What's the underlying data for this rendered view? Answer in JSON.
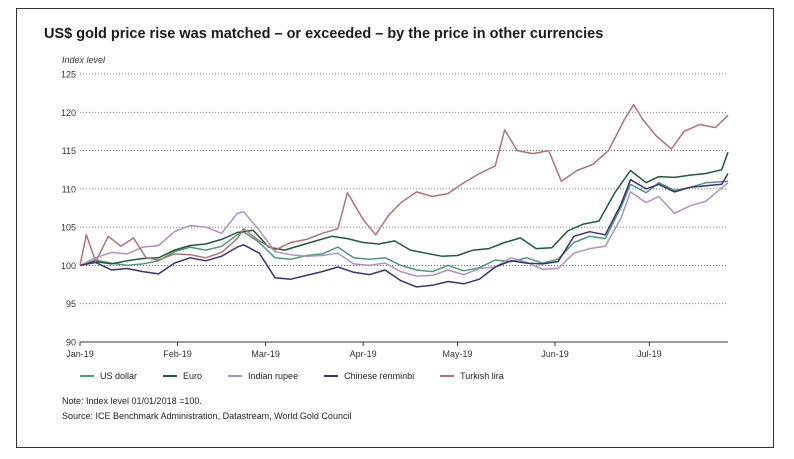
{
  "chart_data": {
    "type": "line",
    "title": "US$ gold price rise was matched – or exceeded – by the price in other currencies",
    "ylabel": "Index level",
    "ylim": [
      90,
      125
    ],
    "yticks": [
      90,
      95,
      100,
      105,
      110,
      115,
      120,
      125
    ],
    "xlim": [
      "2019-01-01",
      "2019-07-26"
    ],
    "xticks": [
      {
        "label": "Jan-19",
        "date": "2019-01-01"
      },
      {
        "label": "Feb-19",
        "date": "2019-02-01"
      },
      {
        "label": "Mar-19",
        "date": "2019-03-01"
      },
      {
        "label": "Apr-19",
        "date": "2019-04-01"
      },
      {
        "label": "May-19",
        "date": "2019-05-01"
      },
      {
        "label": "Jun-19",
        "date": "2019-06-01"
      },
      {
        "label": "Jul-19",
        "date": "2019-07-01"
      }
    ],
    "grid": "horizontal-dotted",
    "legend_position": "bottom",
    "series": [
      {
        "name": "US dollar",
        "color": "#4a9a7a",
        "points": [
          [
            "2019-01-01",
            100.0
          ],
          [
            "2019-01-06",
            100.7
          ],
          [
            "2019-01-11",
            100.3
          ],
          [
            "2019-01-16",
            100.0
          ],
          [
            "2019-01-21",
            100.2
          ],
          [
            "2019-01-26",
            100.6
          ],
          [
            "2019-01-31",
            101.8
          ],
          [
            "2019-02-05",
            102.4
          ],
          [
            "2019-02-10",
            102.0
          ],
          [
            "2019-02-15",
            102.5
          ],
          [
            "2019-02-20",
            104.0
          ],
          [
            "2019-02-22",
            104.4
          ],
          [
            "2019-02-27",
            103.0
          ],
          [
            "2019-03-04",
            101.0
          ],
          [
            "2019-03-09",
            100.8
          ],
          [
            "2019-03-14",
            101.3
          ],
          [
            "2019-03-19",
            101.5
          ],
          [
            "2019-03-24",
            102.4
          ],
          [
            "2019-03-29",
            101.0
          ],
          [
            "2019-04-03",
            100.8
          ],
          [
            "2019-04-08",
            101.0
          ],
          [
            "2019-04-13",
            100.0
          ],
          [
            "2019-04-18",
            99.4
          ],
          [
            "2019-04-23",
            99.2
          ],
          [
            "2019-04-28",
            100.0
          ],
          [
            "2019-05-03",
            99.3
          ],
          [
            "2019-05-08",
            99.7
          ],
          [
            "2019-05-13",
            100.7
          ],
          [
            "2019-05-18",
            100.5
          ],
          [
            "2019-05-23",
            101.0
          ],
          [
            "2019-05-28",
            100.3
          ],
          [
            "2019-06-02",
            100.8
          ],
          [
            "2019-06-07",
            103.0
          ],
          [
            "2019-06-12",
            103.8
          ],
          [
            "2019-06-17",
            103.5
          ],
          [
            "2019-06-22",
            107.6
          ],
          [
            "2019-06-25",
            110.6
          ],
          [
            "2019-06-30",
            109.5
          ],
          [
            "2019-07-04",
            110.8
          ],
          [
            "2019-07-09",
            109.8
          ],
          [
            "2019-07-14",
            110.2
          ],
          [
            "2019-07-19",
            110.8
          ],
          [
            "2019-07-26",
            111.0
          ]
        ]
      },
      {
        "name": "Euro",
        "color": "#1e5a3c",
        "points": [
          [
            "2019-01-01",
            100.0
          ],
          [
            "2019-01-06",
            100.5
          ],
          [
            "2019-01-11",
            100.2
          ],
          [
            "2019-01-16",
            100.6
          ],
          [
            "2019-01-21",
            100.9
          ],
          [
            "2019-01-26",
            101.0
          ],
          [
            "2019-01-31",
            102.0
          ],
          [
            "2019-02-05",
            102.6
          ],
          [
            "2019-02-10",
            102.8
          ],
          [
            "2019-02-15",
            103.4
          ],
          [
            "2019-02-20",
            104.3
          ],
          [
            "2019-02-25",
            104.6
          ],
          [
            "2019-03-02",
            102.4
          ],
          [
            "2019-03-07",
            102.0
          ],
          [
            "2019-03-12",
            102.6
          ],
          [
            "2019-03-17",
            103.2
          ],
          [
            "2019-03-22",
            103.8
          ],
          [
            "2019-03-27",
            103.5
          ],
          [
            "2019-04-01",
            103.0
          ],
          [
            "2019-04-06",
            102.8
          ],
          [
            "2019-04-11",
            103.2
          ],
          [
            "2019-04-16",
            102.0
          ],
          [
            "2019-04-21",
            101.6
          ],
          [
            "2019-04-26",
            101.2
          ],
          [
            "2019-05-01",
            101.3
          ],
          [
            "2019-05-06",
            102.0
          ],
          [
            "2019-05-11",
            102.2
          ],
          [
            "2019-05-16",
            103.0
          ],
          [
            "2019-05-21",
            103.6
          ],
          [
            "2019-05-26",
            102.2
          ],
          [
            "2019-05-31",
            102.3
          ],
          [
            "2019-06-05",
            104.5
          ],
          [
            "2019-06-10",
            105.4
          ],
          [
            "2019-06-15",
            105.8
          ],
          [
            "2019-06-20",
            109.5
          ],
          [
            "2019-06-25",
            112.4
          ],
          [
            "2019-06-30",
            110.8
          ],
          [
            "2019-07-04",
            111.6
          ],
          [
            "2019-07-09",
            111.5
          ],
          [
            "2019-07-14",
            111.8
          ],
          [
            "2019-07-19",
            112.0
          ],
          [
            "2019-07-24",
            112.5
          ],
          [
            "2019-07-26",
            114.8
          ]
        ]
      },
      {
        "name": "Indian rupee",
        "color": "#b090c8",
        "points": [
          [
            "2019-01-01",
            100.0
          ],
          [
            "2019-01-06",
            101.0
          ],
          [
            "2019-01-11",
            101.7
          ],
          [
            "2019-01-16",
            101.5
          ],
          [
            "2019-01-21",
            102.4
          ],
          [
            "2019-01-26",
            102.6
          ],
          [
            "2019-01-31",
            104.4
          ],
          [
            "2019-02-05",
            105.2
          ],
          [
            "2019-02-10",
            105.0
          ],
          [
            "2019-02-15",
            104.2
          ],
          [
            "2019-02-20",
            106.8
          ],
          [
            "2019-02-22",
            107.0
          ],
          [
            "2019-02-27",
            104.6
          ],
          [
            "2019-03-04",
            101.8
          ],
          [
            "2019-03-09",
            101.4
          ],
          [
            "2019-03-14",
            101.2
          ],
          [
            "2019-03-19",
            101.3
          ],
          [
            "2019-03-24",
            101.6
          ],
          [
            "2019-03-29",
            100.2
          ],
          [
            "2019-04-03",
            100.0
          ],
          [
            "2019-04-08",
            100.3
          ],
          [
            "2019-04-13",
            99.2
          ],
          [
            "2019-04-18",
            98.6
          ],
          [
            "2019-04-23",
            98.7
          ],
          [
            "2019-04-28",
            99.4
          ],
          [
            "2019-05-03",
            98.8
          ],
          [
            "2019-05-08",
            99.6
          ],
          [
            "2019-05-13",
            99.8
          ],
          [
            "2019-05-18",
            101.0
          ],
          [
            "2019-05-23",
            100.4
          ],
          [
            "2019-05-28",
            99.5
          ],
          [
            "2019-06-02",
            99.6
          ],
          [
            "2019-06-07",
            101.6
          ],
          [
            "2019-06-12",
            102.2
          ],
          [
            "2019-06-17",
            102.5
          ],
          [
            "2019-06-22",
            106.2
          ],
          [
            "2019-06-25",
            109.6
          ],
          [
            "2019-06-30",
            108.2
          ],
          [
            "2019-07-04",
            109.0
          ],
          [
            "2019-07-09",
            106.8
          ],
          [
            "2019-07-14",
            107.8
          ],
          [
            "2019-07-19",
            108.4
          ],
          [
            "2019-07-26",
            110.8
          ]
        ]
      },
      {
        "name": "Chinese renminbi",
        "color": "#3a2f7a",
        "points": [
          [
            "2019-01-01",
            100.0
          ],
          [
            "2019-01-06",
            100.4
          ],
          [
            "2019-01-11",
            99.4
          ],
          [
            "2019-01-16",
            99.6
          ],
          [
            "2019-01-21",
            99.2
          ],
          [
            "2019-01-26",
            98.9
          ],
          [
            "2019-01-31",
            100.3
          ],
          [
            "2019-02-05",
            101.0
          ],
          [
            "2019-02-10",
            100.6
          ],
          [
            "2019-02-15",
            101.2
          ],
          [
            "2019-02-20",
            102.4
          ],
          [
            "2019-02-22",
            102.7
          ],
          [
            "2019-02-27",
            101.6
          ],
          [
            "2019-03-04",
            98.4
          ],
          [
            "2019-03-09",
            98.2
          ],
          [
            "2019-03-14",
            98.7
          ],
          [
            "2019-03-19",
            99.2
          ],
          [
            "2019-03-24",
            99.8
          ],
          [
            "2019-03-29",
            99.1
          ],
          [
            "2019-04-03",
            98.8
          ],
          [
            "2019-04-08",
            99.4
          ],
          [
            "2019-04-13",
            98.0
          ],
          [
            "2019-04-18",
            97.2
          ],
          [
            "2019-04-23",
            97.4
          ],
          [
            "2019-04-28",
            97.9
          ],
          [
            "2019-05-03",
            97.6
          ],
          [
            "2019-05-08",
            98.2
          ],
          [
            "2019-05-13",
            99.8
          ],
          [
            "2019-05-18",
            100.6
          ],
          [
            "2019-05-23",
            100.3
          ],
          [
            "2019-05-28",
            100.2
          ],
          [
            "2019-06-02",
            100.5
          ],
          [
            "2019-06-07",
            103.8
          ],
          [
            "2019-06-12",
            104.4
          ],
          [
            "2019-06-17",
            104.0
          ],
          [
            "2019-06-22",
            108.0
          ],
          [
            "2019-06-25",
            111.2
          ],
          [
            "2019-06-30",
            110.0
          ],
          [
            "2019-07-04",
            110.6
          ],
          [
            "2019-07-09",
            109.6
          ],
          [
            "2019-07-14",
            110.2
          ],
          [
            "2019-07-19",
            110.4
          ],
          [
            "2019-07-24",
            110.6
          ],
          [
            "2019-07-26",
            112.0
          ]
        ]
      },
      {
        "name": "Turkish lira",
        "color": "#b07272",
        "points": [
          [
            "2019-01-01",
            100.0
          ],
          [
            "2019-01-03",
            104.0
          ],
          [
            "2019-01-06",
            100.5
          ],
          [
            "2019-01-10",
            103.8
          ],
          [
            "2019-01-14",
            102.5
          ],
          [
            "2019-01-18",
            103.6
          ],
          [
            "2019-01-22",
            101.0
          ],
          [
            "2019-01-26",
            100.7
          ],
          [
            "2019-01-31",
            101.5
          ],
          [
            "2019-02-05",
            101.4
          ],
          [
            "2019-02-10",
            101.0
          ],
          [
            "2019-02-15",
            101.7
          ],
          [
            "2019-02-20",
            103.5
          ],
          [
            "2019-02-22",
            104.8
          ],
          [
            "2019-02-27",
            103.2
          ],
          [
            "2019-03-04",
            102.0
          ],
          [
            "2019-03-09",
            103.0
          ],
          [
            "2019-03-14",
            103.4
          ],
          [
            "2019-03-19",
            104.2
          ],
          [
            "2019-03-24",
            104.8
          ],
          [
            "2019-03-27",
            109.5
          ],
          [
            "2019-04-01",
            106.0
          ],
          [
            "2019-04-05",
            104.0
          ],
          [
            "2019-04-09",
            106.5
          ],
          [
            "2019-04-13",
            108.2
          ],
          [
            "2019-04-18",
            109.6
          ],
          [
            "2019-04-23",
            109.0
          ],
          [
            "2019-04-28",
            109.4
          ],
          [
            "2019-05-03",
            110.8
          ],
          [
            "2019-05-08",
            112.0
          ],
          [
            "2019-05-13",
            113.0
          ],
          [
            "2019-05-16",
            117.7
          ],
          [
            "2019-05-20",
            115.0
          ],
          [
            "2019-05-25",
            114.6
          ],
          [
            "2019-05-30",
            115.0
          ],
          [
            "2019-06-03",
            111.0
          ],
          [
            "2019-06-08",
            112.4
          ],
          [
            "2019-06-13",
            113.2
          ],
          [
            "2019-06-18",
            115.0
          ],
          [
            "2019-06-23",
            119.0
          ],
          [
            "2019-06-26",
            121.0
          ],
          [
            "2019-06-29",
            119.0
          ],
          [
            "2019-07-03",
            117.0
          ],
          [
            "2019-07-08",
            115.2
          ],
          [
            "2019-07-12",
            117.5
          ],
          [
            "2019-07-17",
            118.4
          ],
          [
            "2019-07-22",
            118.0
          ],
          [
            "2019-07-26",
            119.6
          ]
        ]
      }
    ]
  },
  "legend": [
    {
      "label": "US dollar",
      "color": "#4a9a7a"
    },
    {
      "label": "Euro",
      "color": "#1e5a3c"
    },
    {
      "label": "Indian rupee",
      "color": "#b090c8"
    },
    {
      "label": "Chinese renminbi",
      "color": "#3a2f7a"
    },
    {
      "label": "Turkish lira",
      "color": "#b07272"
    }
  ],
  "note": "Note: Index level 01/01/2018 =100.",
  "source": "Source: ICE Benchmark Administration, Datastream, World Gold Council"
}
